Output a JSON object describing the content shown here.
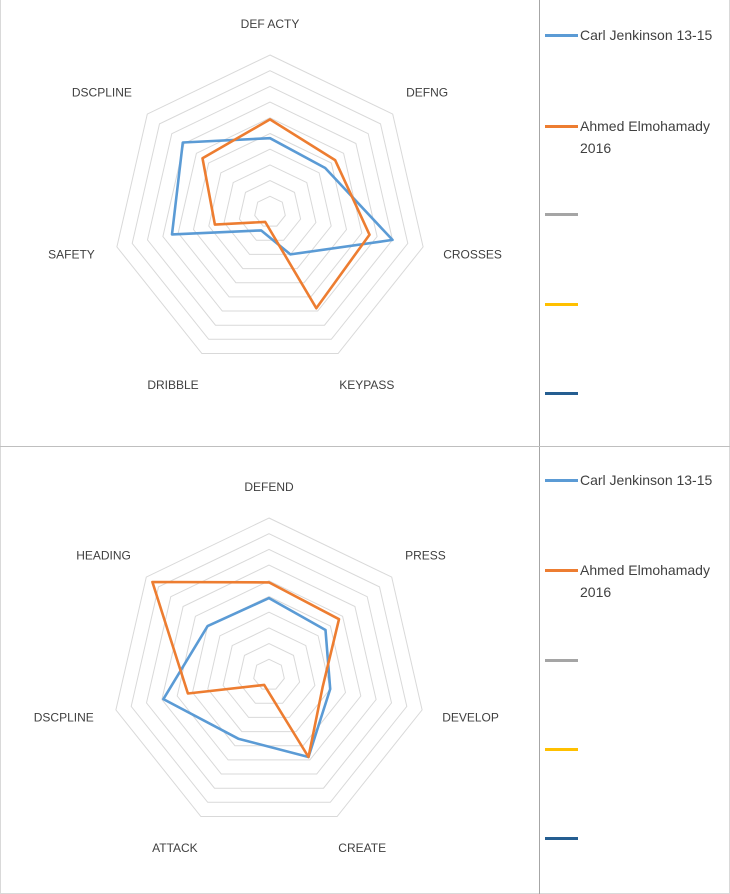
{
  "chart_data": [
    {
      "type": "radar",
      "axes": [
        "DEF ACTY",
        "DEFNG",
        "CROSSES",
        "KEYPASS",
        "DRIBBLE",
        "SAFETY",
        "DSCPLINE"
      ],
      "rmax": 10,
      "rings": 10,
      "series": [
        {
          "name": "Carl Jenkinson 13-15",
          "color": "#5b9bd5",
          "values": [
            4.7,
            4.5,
            8.0,
            3.0,
            1.3,
            6.4,
            7.1
          ]
        },
        {
          "name": "Ahmed Elmohamady 2016",
          "color": "#ed7d31",
          "values": [
            5.9,
            5.3,
            6.5,
            6.8,
            0.7,
            3.6,
            5.5
          ]
        }
      ],
      "legend": [
        {
          "label": "Carl Jenkinson 13-15",
          "color": "#5b9bd5"
        },
        {
          "label": "Ahmed Elmohamady 2016",
          "color": "#ed7d31"
        },
        {
          "label": "",
          "color": "#a5a5a5"
        },
        {
          "label": "",
          "color": "#ffc000"
        },
        {
          "label": "",
          "color": "#255e91"
        }
      ],
      "legend_position": "right",
      "grid": true
    },
    {
      "type": "radar",
      "axes": [
        "DEFEND",
        "PRESS",
        "DEVELOP",
        "CREATE",
        "ATTACK",
        "DSCPLINE",
        "HEADING"
      ],
      "rmax": 10,
      "rings": 10,
      "series": [
        {
          "name": "Carl Jenkinson 13-15",
          "color": "#5b9bd5",
          "values": [
            4.9,
            4.6,
            4.0,
            5.8,
            4.5,
            6.9,
            5.0
          ]
        },
        {
          "name": "Ahmed Elmohamady 2016",
          "color": "#ed7d31",
          "values": [
            5.9,
            5.7,
            3.5,
            5.8,
            0.7,
            5.3,
            9.5
          ]
        }
      ],
      "legend": [
        {
          "label": "Carl Jenkinson 13-15",
          "color": "#5b9bd5"
        },
        {
          "label": "Ahmed Elmohamady 2016",
          "color": "#ed7d31"
        },
        {
          "label": "",
          "color": "#a5a5a5"
        },
        {
          "label": "",
          "color": "#ffc000"
        },
        {
          "label": "",
          "color": "#255e91"
        }
      ],
      "legend_position": "right",
      "grid": true
    }
  ]
}
